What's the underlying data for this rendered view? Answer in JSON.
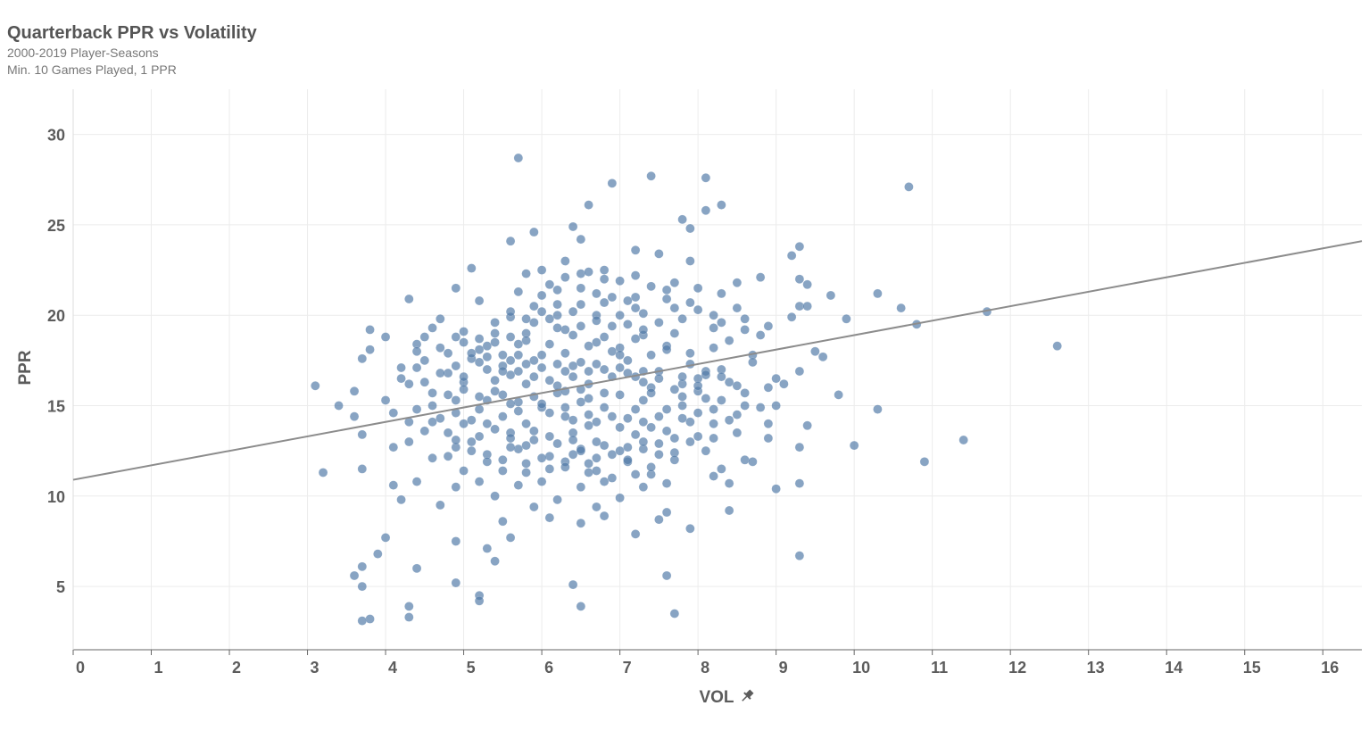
{
  "header": {
    "title": "Quarterback PPR vs Volatility",
    "subtitle_1": "2000-2019 Player-Seasons",
    "subtitle_2": "Min. 10 Games Played, 1 PPR"
  },
  "colors": {
    "point": "#4f79a7",
    "trend": "#8c8c8c",
    "grid": "#ececec",
    "axis": "#666666"
  },
  "chart_data": {
    "type": "scatter",
    "title": "Quarterback PPR vs Volatility",
    "subtitle": [
      "2000-2019 Player-Seasons",
      "Min. 10 Games Played, 1 PPR"
    ],
    "xlabel": "VOL",
    "xlabel_icon": "pin-icon",
    "ylabel": "PPR",
    "xlim": [
      0,
      16.5
    ],
    "ylim": [
      1.5,
      32.5
    ],
    "x_ticks": [
      0,
      1,
      2,
      3,
      4,
      5,
      6,
      7,
      8,
      9,
      10,
      11,
      12,
      13,
      14,
      15,
      16
    ],
    "y_ticks": [
      5,
      10,
      15,
      20,
      25,
      30
    ],
    "grid": true,
    "trend_line": {
      "x": [
        0,
        16.5
      ],
      "y": [
        10.9,
        24.1
      ]
    },
    "points": [
      [
        5.7,
        28.7
      ],
      [
        7.4,
        27.7
      ],
      [
        8.1,
        27.6
      ],
      [
        6.9,
        27.3
      ],
      [
        10.7,
        27.1
      ],
      [
        6.6,
        26.1
      ],
      [
        8.3,
        26.1
      ],
      [
        8.1,
        25.8
      ],
      [
        7.8,
        25.3
      ],
      [
        6.4,
        24.9
      ],
      [
        7.9,
        24.8
      ],
      [
        5.9,
        24.6
      ],
      [
        6.5,
        24.2
      ],
      [
        5.6,
        24.1
      ],
      [
        9.3,
        23.8
      ],
      [
        9.2,
        23.3
      ],
      [
        7.2,
        23.6
      ],
      [
        6.3,
        23.0
      ],
      [
        7.5,
        23.4
      ],
      [
        7.9,
        23.0
      ],
      [
        5.1,
        22.6
      ],
      [
        6.0,
        22.5
      ],
      [
        6.8,
        22.5
      ],
      [
        5.8,
        22.3
      ],
      [
        7.2,
        22.2
      ],
      [
        6.5,
        22.3
      ],
      [
        8.8,
        22.1
      ],
      [
        9.3,
        22.0
      ],
      [
        9.4,
        21.7
      ],
      [
        8.5,
        21.8
      ],
      [
        4.9,
        21.5
      ],
      [
        6.1,
        21.7
      ],
      [
        5.7,
        21.3
      ],
      [
        7.6,
        21.4
      ],
      [
        8.3,
        21.2
      ],
      [
        10.3,
        21.2
      ],
      [
        9.7,
        21.1
      ],
      [
        4.3,
        20.9
      ],
      [
        5.2,
        20.8
      ],
      [
        6.2,
        20.6
      ],
      [
        6.8,
        20.7
      ],
      [
        7.2,
        20.4
      ],
      [
        7.7,
        20.4
      ],
      [
        8.0,
        20.3
      ],
      [
        9.3,
        20.5
      ],
      [
        9.4,
        20.5
      ],
      [
        10.6,
        20.4
      ],
      [
        11.7,
        20.2
      ],
      [
        6.0,
        20.2
      ],
      [
        6.7,
        20.0
      ],
      [
        7.0,
        20.0
      ],
      [
        9.2,
        19.9
      ],
      [
        5.6,
        19.9
      ],
      [
        7.8,
        19.8
      ],
      [
        8.6,
        19.8
      ],
      [
        9.9,
        19.8
      ],
      [
        4.7,
        19.8
      ],
      [
        5.4,
        19.6
      ],
      [
        6.9,
        19.4
      ],
      [
        7.1,
        19.5
      ],
      [
        8.2,
        19.3
      ],
      [
        10.8,
        19.5
      ],
      [
        3.8,
        19.2
      ],
      [
        4.6,
        19.3
      ],
      [
        5.0,
        19.1
      ],
      [
        5.8,
        19.0
      ],
      [
        6.3,
        19.2
      ],
      [
        7.3,
        18.9
      ],
      [
        8.4,
        18.6
      ],
      [
        4.0,
        18.8
      ],
      [
        4.4,
        18.4
      ],
      [
        5.3,
        18.3
      ],
      [
        6.1,
        18.4
      ],
      [
        6.7,
        18.5
      ],
      [
        7.0,
        18.2
      ],
      [
        7.6,
        18.3
      ],
      [
        8.2,
        18.2
      ],
      [
        9.5,
        18.0
      ],
      [
        12.6,
        18.3
      ],
      [
        3.8,
        18.1
      ],
      [
        4.8,
        17.9
      ],
      [
        5.5,
        17.8
      ],
      [
        6.3,
        17.9
      ],
      [
        7.4,
        17.8
      ],
      [
        8.7,
        17.8
      ],
      [
        9.6,
        17.7
      ],
      [
        3.7,
        17.6
      ],
      [
        4.5,
        17.5
      ],
      [
        5.1,
        17.6
      ],
      [
        5.9,
        17.5
      ],
      [
        6.5,
        17.4
      ],
      [
        7.1,
        17.5
      ],
      [
        7.9,
        17.3
      ],
      [
        4.2,
        17.1
      ],
      [
        5.3,
        17.0
      ],
      [
        6.0,
        17.1
      ],
      [
        6.8,
        17.0
      ],
      [
        7.5,
        16.9
      ],
      [
        8.1,
        16.9
      ],
      [
        9.3,
        16.9
      ],
      [
        4.8,
        16.8
      ],
      [
        5.6,
        16.7
      ],
      [
        6.4,
        16.6
      ],
      [
        7.2,
        16.6
      ],
      [
        8.0,
        16.5
      ],
      [
        9.0,
        16.5
      ],
      [
        3.1,
        16.1
      ],
      [
        4.3,
        16.2
      ],
      [
        5.0,
        16.3
      ],
      [
        5.8,
        16.2
      ],
      [
        6.6,
        16.2
      ],
      [
        7.4,
        16.0
      ],
      [
        8.5,
        16.1
      ],
      [
        9.1,
        16.2
      ],
      [
        3.6,
        15.8
      ],
      [
        4.6,
        15.7
      ],
      [
        5.4,
        15.8
      ],
      [
        6.2,
        15.7
      ],
      [
        7.0,
        15.6
      ],
      [
        7.8,
        15.5
      ],
      [
        9.8,
        15.6
      ],
      [
        4.0,
        15.3
      ],
      [
        4.9,
        15.3
      ],
      [
        5.7,
        15.2
      ],
      [
        6.5,
        15.2
      ],
      [
        7.3,
        15.3
      ],
      [
        8.3,
        15.3
      ],
      [
        3.4,
        15.0
      ],
      [
        4.4,
        14.8
      ],
      [
        5.2,
        14.8
      ],
      [
        6.0,
        14.9
      ],
      [
        6.8,
        14.9
      ],
      [
        7.6,
        14.8
      ],
      [
        8.8,
        14.9
      ],
      [
        10.3,
        14.8
      ],
      [
        3.6,
        14.4
      ],
      [
        4.7,
        14.3
      ],
      [
        5.5,
        14.4
      ],
      [
        6.3,
        14.4
      ],
      [
        7.1,
        14.3
      ],
      [
        7.9,
        14.1
      ],
      [
        8.9,
        14.0
      ],
      [
        4.3,
        14.1
      ],
      [
        5.0,
        14.0
      ],
      [
        5.8,
        14.0
      ],
      [
        6.6,
        13.9
      ],
      [
        7.4,
        13.8
      ],
      [
        9.4,
        13.9
      ],
      [
        3.7,
        13.4
      ],
      [
        4.8,
        13.5
      ],
      [
        5.6,
        13.5
      ],
      [
        6.4,
        13.5
      ],
      [
        7.2,
        13.4
      ],
      [
        8.0,
        13.3
      ],
      [
        8.9,
        13.2
      ],
      [
        4.3,
        13.0
      ],
      [
        5.1,
        13.0
      ],
      [
        5.9,
        13.1
      ],
      [
        6.7,
        13.0
      ],
      [
        7.5,
        12.9
      ],
      [
        8.2,
        13.2
      ],
      [
        11.4,
        13.1
      ],
      [
        4.1,
        12.7
      ],
      [
        4.9,
        12.7
      ],
      [
        5.7,
        12.6
      ],
      [
        6.5,
        12.6
      ],
      [
        7.3,
        12.6
      ],
      [
        9.3,
        12.7
      ],
      [
        10.0,
        12.8
      ],
      [
        5.3,
        12.3
      ],
      [
        6.1,
        12.2
      ],
      [
        6.9,
        12.3
      ],
      [
        7.7,
        12.4
      ],
      [
        8.6,
        12.0
      ],
      [
        4.6,
        12.1
      ],
      [
        5.5,
        12.0
      ],
      [
        6.3,
        11.9
      ],
      [
        7.1,
        11.9
      ],
      [
        8.7,
        11.9
      ],
      [
        10.9,
        11.9
      ],
      [
        3.7,
        11.5
      ],
      [
        5.0,
        11.4
      ],
      [
        5.8,
        11.3
      ],
      [
        6.6,
        11.3
      ],
      [
        7.4,
        11.2
      ],
      [
        8.2,
        11.1
      ],
      [
        3.2,
        11.3
      ],
      [
        4.4,
        10.8
      ],
      [
        5.2,
        10.8
      ],
      [
        6.0,
        10.8
      ],
      [
        6.8,
        10.8
      ],
      [
        7.6,
        10.7
      ],
      [
        8.4,
        10.7
      ],
      [
        9.3,
        10.7
      ],
      [
        4.1,
        10.6
      ],
      [
        4.9,
        10.5
      ],
      [
        5.7,
        10.6
      ],
      [
        6.5,
        10.5
      ],
      [
        7.3,
        10.5
      ],
      [
        9.0,
        10.4
      ],
      [
        4.2,
        9.8
      ],
      [
        5.4,
        10.0
      ],
      [
        6.2,
        9.8
      ],
      [
        7.0,
        9.9
      ],
      [
        4.7,
        9.5
      ],
      [
        5.9,
        9.4
      ],
      [
        6.7,
        9.4
      ],
      [
        8.4,
        9.2
      ],
      [
        7.6,
        9.1
      ],
      [
        6.1,
        8.8
      ],
      [
        6.8,
        8.9
      ],
      [
        7.5,
        8.7
      ],
      [
        5.5,
        8.6
      ],
      [
        6.5,
        8.5
      ],
      [
        7.9,
        8.2
      ],
      [
        4.0,
        7.7
      ],
      [
        5.6,
        7.7
      ],
      [
        7.2,
        7.9
      ],
      [
        4.9,
        7.5
      ],
      [
        5.3,
        7.1
      ],
      [
        3.9,
        6.8
      ],
      [
        9.3,
        6.7
      ],
      [
        5.4,
        6.4
      ],
      [
        3.7,
        6.1
      ],
      [
        4.4,
        6.0
      ],
      [
        3.6,
        5.6
      ],
      [
        7.6,
        5.6
      ],
      [
        3.7,
        5.0
      ],
      [
        4.9,
        5.2
      ],
      [
        6.4,
        5.1
      ],
      [
        5.2,
        4.5
      ],
      [
        5.2,
        4.2
      ],
      [
        4.3,
        3.9
      ],
      [
        6.5,
        3.9
      ],
      [
        4.3,
        3.3
      ],
      [
        7.7,
        3.5
      ],
      [
        3.8,
        3.2
      ],
      [
        3.7,
        3.1
      ],
      [
        5.0,
        18.5
      ],
      [
        5.2,
        18.7
      ],
      [
        5.4,
        19.0
      ],
      [
        5.6,
        18.8
      ],
      [
        5.8,
        18.6
      ],
      [
        5.9,
        19.6
      ],
      [
        6.1,
        19.8
      ],
      [
        6.2,
        19.3
      ],
      [
        6.4,
        18.9
      ],
      [
        6.5,
        19.4
      ],
      [
        6.6,
        18.3
      ],
      [
        6.8,
        18.8
      ],
      [
        6.9,
        18.0
      ],
      [
        7.0,
        17.8
      ],
      [
        7.2,
        18.7
      ],
      [
        7.3,
        19.2
      ],
      [
        7.5,
        19.6
      ],
      [
        7.6,
        18.1
      ],
      [
        7.7,
        19.0
      ],
      [
        7.9,
        17.9
      ],
      [
        6.0,
        17.8
      ],
      [
        6.2,
        17.3
      ],
      [
        6.3,
        16.9
      ],
      [
        6.4,
        17.2
      ],
      [
        6.6,
        16.9
      ],
      [
        6.7,
        17.3
      ],
      [
        6.9,
        16.6
      ],
      [
        7.0,
        17.1
      ],
      [
        7.1,
        16.8
      ],
      [
        7.3,
        16.9
      ],
      [
        5.5,
        17.2
      ],
      [
        5.7,
        16.9
      ],
      [
        5.8,
        17.3
      ],
      [
        5.9,
        16.6
      ],
      [
        6.1,
        16.4
      ],
      [
        6.2,
        16.1
      ],
      [
        6.3,
        15.8
      ],
      [
        6.5,
        15.9
      ],
      [
        6.6,
        15.4
      ],
      [
        6.8,
        15.7
      ],
      [
        5.0,
        15.9
      ],
      [
        5.2,
        15.5
      ],
      [
        5.3,
        15.3
      ],
      [
        5.5,
        15.6
      ],
      [
        5.6,
        15.1
      ],
      [
        5.7,
        14.7
      ],
      [
        5.9,
        15.5
      ],
      [
        6.0,
        15.1
      ],
      [
        6.1,
        14.6
      ],
      [
        6.3,
        14.9
      ],
      [
        6.4,
        14.2
      ],
      [
        6.6,
        14.5
      ],
      [
        6.7,
        14.1
      ],
      [
        6.9,
        14.4
      ],
      [
        7.0,
        13.8
      ],
      [
        7.2,
        14.8
      ],
      [
        7.3,
        14.1
      ],
      [
        7.5,
        14.4
      ],
      [
        7.6,
        13.6
      ],
      [
        7.8,
        14.3
      ],
      [
        4.6,
        15.0
      ],
      [
        4.8,
        15.6
      ],
      [
        4.9,
        14.6
      ],
      [
        5.1,
        14.2
      ],
      [
        5.3,
        14.0
      ],
      [
        5.4,
        13.7
      ],
      [
        5.6,
        13.2
      ],
      [
        5.8,
        12.8
      ],
      [
        5.9,
        13.6
      ],
      [
        6.1,
        13.3
      ],
      [
        6.2,
        12.9
      ],
      [
        6.4,
        13.1
      ],
      [
        6.5,
        12.5
      ],
      [
        6.7,
        12.1
      ],
      [
        6.8,
        12.8
      ],
      [
        7.0,
        12.5
      ],
      [
        7.1,
        12.0
      ],
      [
        7.3,
        13.0
      ],
      [
        7.5,
        12.3
      ],
      [
        7.7,
        13.2
      ],
      [
        4.2,
        16.5
      ],
      [
        4.4,
        17.1
      ],
      [
        4.5,
        16.3
      ],
      [
        4.7,
        16.8
      ],
      [
        4.9,
        17.2
      ],
      [
        5.0,
        16.6
      ],
      [
        5.2,
        17.4
      ],
      [
        5.4,
        16.4
      ],
      [
        5.5,
        16.9
      ],
      [
        5.7,
        17.8
      ],
      [
        7.8,
        16.2
      ],
      [
        8.0,
        15.8
      ],
      [
        8.1,
        16.7
      ],
      [
        8.3,
        17.0
      ],
      [
        8.4,
        16.3
      ],
      [
        8.6,
        15.7
      ],
      [
        8.7,
        17.4
      ],
      [
        8.9,
        16.0
      ],
      [
        9.0,
        15.0
      ],
      [
        7.8,
        15.0
      ],
      [
        8.0,
        14.6
      ],
      [
        8.2,
        14.0
      ],
      [
        8.4,
        14.2
      ],
      [
        8.5,
        13.5
      ],
      [
        8.6,
        15.0
      ],
      [
        7.7,
        12.0
      ],
      [
        7.9,
        13.0
      ],
      [
        8.1,
        12.5
      ],
      [
        8.3,
        11.5
      ],
      [
        4.1,
        14.6
      ],
      [
        4.5,
        13.6
      ],
      [
        4.6,
        14.1
      ],
      [
        4.8,
        12.2
      ],
      [
        4.9,
        13.1
      ],
      [
        5.1,
        12.5
      ],
      [
        5.2,
        13.3
      ],
      [
        5.3,
        11.9
      ],
      [
        5.5,
        11.4
      ],
      [
        5.6,
        12.7
      ],
      [
        5.8,
        11.8
      ],
      [
        6.0,
        12.1
      ],
      [
        6.1,
        11.5
      ],
      [
        6.3,
        11.6
      ],
      [
        6.4,
        12.3
      ],
      [
        6.6,
        11.8
      ],
      [
        6.7,
        11.4
      ],
      [
        6.9,
        11.0
      ],
      [
        7.1,
        12.7
      ],
      [
        7.2,
        11.2
      ],
      [
        7.4,
        11.6
      ],
      [
        6.2,
        20.0
      ],
      [
        6.4,
        20.2
      ],
      [
        6.5,
        20.6
      ],
      [
        6.7,
        19.7
      ],
      [
        6.9,
        21.0
      ],
      [
        7.1,
        20.8
      ],
      [
        7.3,
        20.1
      ],
      [
        7.4,
        21.6
      ],
      [
        7.6,
        20.9
      ],
      [
        7.7,
        21.8
      ],
      [
        7.9,
        20.7
      ],
      [
        8.0,
        21.5
      ],
      [
        8.2,
        20.0
      ],
      [
        8.3,
        19.6
      ],
      [
        8.5,
        20.4
      ],
      [
        8.6,
        19.2
      ],
      [
        8.8,
        18.9
      ],
      [
        8.9,
        19.4
      ],
      [
        5.6,
        20.2
      ],
      [
        5.8,
        19.8
      ],
      [
        5.9,
        20.5
      ],
      [
        6.0,
        21.1
      ],
      [
        6.2,
        21.4
      ],
      [
        6.3,
        22.1
      ],
      [
        6.5,
        21.5
      ],
      [
        6.6,
        22.4
      ],
      [
        6.7,
        21.2
      ],
      [
        6.8,
        22.0
      ],
      [
        7.0,
        21.9
      ],
      [
        7.2,
        21.0
      ],
      [
        4.4,
        18.0
      ],
      [
        4.5,
        18.8
      ],
      [
        4.7,
        18.2
      ],
      [
        4.9,
        18.8
      ],
      [
        5.1,
        17.9
      ],
      [
        5.2,
        18.1
      ],
      [
        5.3,
        17.7
      ],
      [
        5.4,
        18.5
      ],
      [
        5.6,
        17.5
      ],
      [
        5.7,
        18.4
      ],
      [
        7.3,
        16.3
      ],
      [
        7.4,
        15.7
      ],
      [
        7.5,
        16.5
      ],
      [
        7.7,
        15.9
      ],
      [
        7.8,
        16.6
      ],
      [
        8.0,
        16.1
      ],
      [
        8.1,
        15.4
      ],
      [
        8.2,
        14.8
      ],
      [
        8.3,
        16.6
      ],
      [
        8.5,
        14.5
      ]
    ]
  }
}
